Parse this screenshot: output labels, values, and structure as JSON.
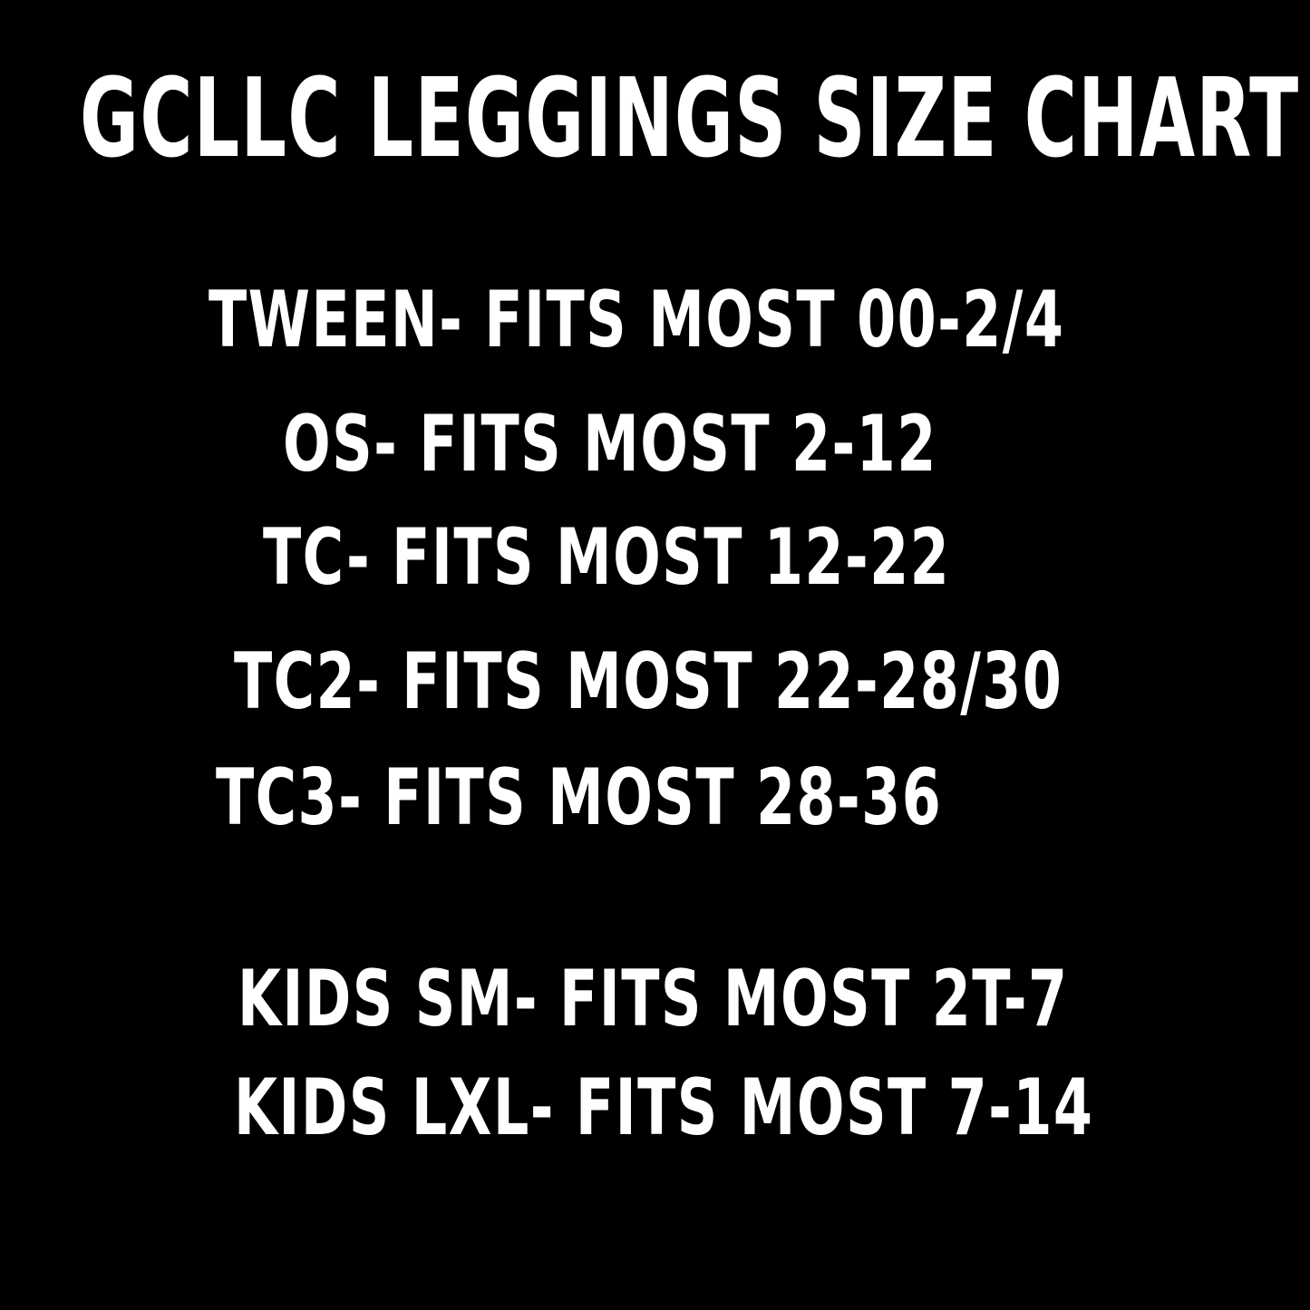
{
  "header": {
    "title": "GCLLC LEGGINGS SIZE CHART"
  },
  "adult_sizes": [
    "TWEEN- FITS MOST 00-2/4",
    "OS- FITS MOST 2-12",
    "TC- FITS MOST 12-22",
    "TC2- FITS MOST 22-28/30",
    "TC3- FITS MOST 28-36"
  ],
  "kids_sizes": [
    "KIDS SM- FITS MOST 2T-7",
    "KIDS LXL- FITS MOST 7-14"
  ]
}
